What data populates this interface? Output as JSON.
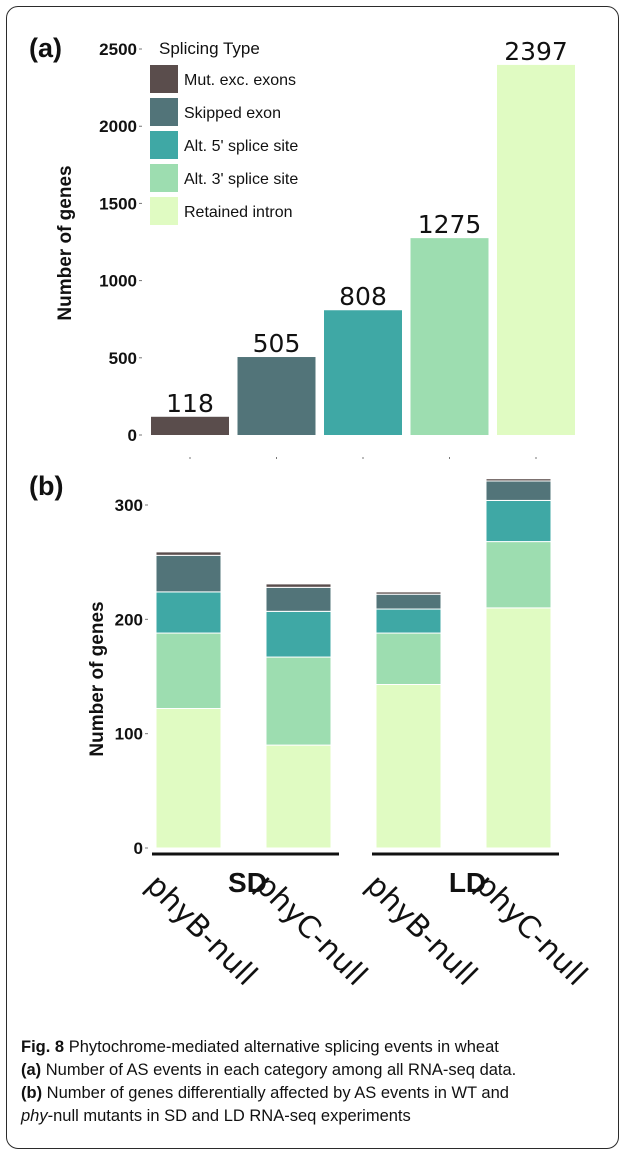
{
  "colors": {
    "mutually_exclusive_exons": "#5a4d4c",
    "skipped_exon": "#527479",
    "alt5": "#3fa8a5",
    "alt3": "#9dddb0",
    "retained_intron": "#e0fbc2"
  },
  "chart_data": [
    {
      "type": "bar",
      "panel_label": "(a)",
      "ylabel": "Number of genes",
      "ylim": [
        0,
        2500
      ],
      "yticks": [
        0,
        500,
        1000,
        1500,
        2000,
        2500
      ],
      "categories": [
        "Mut. exc. exons",
        "Skipped exon",
        "Alt. 5' splice site",
        "Alt. 3' splice site",
        "Retained intron"
      ],
      "values": [
        118,
        505,
        808,
        1275,
        2397
      ],
      "data_labels": [
        "118",
        "505",
        "808",
        "1275",
        "2397"
      ],
      "legend": {
        "title": "Splicing Type",
        "placement": "top-left",
        "items": [
          "Mut. exc. exons",
          "Skipped exon",
          "Alt. 5' splice site",
          "Alt. 3' splice site",
          "Retained intron"
        ]
      },
      "grid": false
    },
    {
      "type": "stacked_bar",
      "panel_label": "(b)",
      "ylabel": "Number of genes",
      "ylim": [
        0,
        300
      ],
      "yticks": [
        0,
        100,
        200,
        300
      ],
      "categories": [
        "phyB-null",
        "phyC-null",
        "phyB-null",
        "phyC-null"
      ],
      "groups": [
        {
          "label": "SD",
          "members": [
            0,
            1
          ]
        },
        {
          "label": "LD",
          "members": [
            2,
            3
          ]
        }
      ],
      "series": [
        {
          "name": "Retained intron",
          "values": [
            122,
            90,
            143,
            210
          ]
        },
        {
          "name": "Alt. 3' splice site",
          "values": [
            66,
            77,
            45,
            58
          ]
        },
        {
          "name": "Alt. 5' splice site",
          "values": [
            36,
            40,
            21,
            36
          ]
        },
        {
          "name": "Skipped exon",
          "values": [
            32,
            21,
            13,
            17
          ]
        },
        {
          "name": "Mut. exc. exons",
          "values": [
            3,
            3,
            2,
            2
          ]
        }
      ],
      "grid": false
    }
  ],
  "caption": {
    "fig_label": "Fig. 8",
    "title": "Phytochrome-mediated alternative splicing events in wheat",
    "a_label": "(a)",
    "a_text": "Number of AS events in each category among all RNA-seq data.",
    "b_label": "(b)",
    "b_text_1": "Number of genes differentially affected by AS events in WT and",
    "b_italic": "phy",
    "b_text_2": "-null mutants in SD and LD RNA-seq experiments"
  }
}
